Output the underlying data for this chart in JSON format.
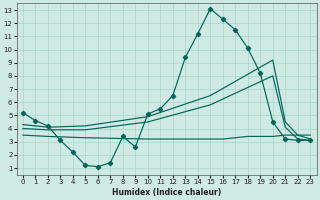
{
  "xlabel": "Humidex (Indice chaleur)",
  "bg_color": "#cfe9e5",
  "grid_color": "#a8d5cc",
  "line_color": "#006655",
  "xlim": [
    -0.5,
    23.5
  ],
  "ylim": [
    0.5,
    13.5
  ],
  "xticks": [
    0,
    1,
    2,
    3,
    4,
    5,
    6,
    7,
    8,
    9,
    10,
    11,
    12,
    13,
    14,
    15,
    16,
    17,
    18,
    19,
    20,
    21,
    22,
    23
  ],
  "yticks": [
    1,
    2,
    3,
    4,
    5,
    6,
    7,
    8,
    9,
    10,
    11,
    12,
    13
  ],
  "curve_x": [
    0,
    1,
    2,
    3,
    4,
    5,
    6,
    7,
    8,
    9,
    10,
    11,
    12,
    13,
    14,
    15,
    16,
    17,
    18,
    19,
    20,
    21,
    22,
    23
  ],
  "curve_y": [
    5.2,
    4.6,
    4.2,
    3.1,
    2.2,
    1.2,
    1.1,
    1.4,
    3.4,
    2.6,
    5.1,
    5.5,
    6.5,
    9.4,
    11.2,
    13.1,
    12.3,
    11.5,
    10.1,
    8.2,
    4.5,
    3.2,
    3.1,
    3.1
  ],
  "straight1_x": [
    0,
    2,
    5,
    10,
    15,
    20,
    21,
    22,
    23
  ],
  "straight1_y": [
    4.3,
    4.1,
    4.2,
    4.9,
    6.5,
    9.2,
    4.5,
    3.5,
    3.2
  ],
  "straight2_x": [
    0,
    2,
    5,
    10,
    15,
    20,
    21,
    22,
    23
  ],
  "straight2_y": [
    4.0,
    3.9,
    3.9,
    4.5,
    5.8,
    8.0,
    4.1,
    3.2,
    3.1
  ],
  "flat_x": [
    0,
    2,
    5,
    10,
    15,
    16,
    17,
    18,
    19,
    20,
    21,
    22,
    23
  ],
  "flat_y": [
    3.5,
    3.4,
    3.3,
    3.2,
    3.2,
    3.2,
    3.3,
    3.4,
    3.4,
    3.4,
    3.5,
    3.5,
    3.5
  ]
}
